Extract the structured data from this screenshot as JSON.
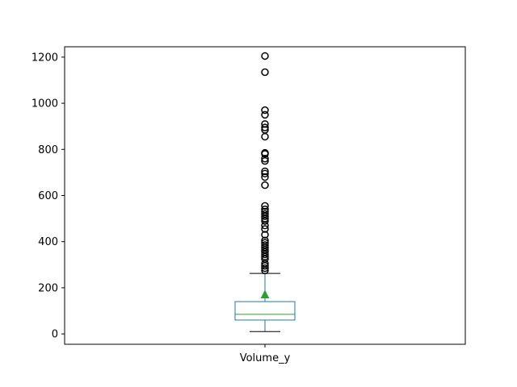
{
  "chart_data": {
    "type": "box",
    "categories": [
      "Volume_y"
    ],
    "ylim": [
      -45,
      1245
    ],
    "y_ticks": [
      0,
      200,
      400,
      600,
      800,
      1000,
      1200
    ],
    "box": {
      "whisker_low": 10,
      "q1": 60,
      "median": 85,
      "mean": 170,
      "q3": 140,
      "whisker_high": 262
    },
    "outliers": [
      275,
      285,
      295,
      305,
      325,
      335,
      345,
      355,
      365,
      375,
      385,
      395,
      405,
      430,
      455,
      470,
      490,
      500,
      510,
      520,
      530,
      540,
      555,
      645,
      680,
      695,
      705,
      750,
      760,
      780,
      785,
      855,
      885,
      895,
      910,
      950,
      970,
      1135,
      1205
    ],
    "colors": {
      "box": "#1f77b4",
      "median": "#2ca02c",
      "mean_marker": "#2ca02c",
      "whisker": "#000000",
      "outlier": "#000000"
    },
    "grid": false
  }
}
